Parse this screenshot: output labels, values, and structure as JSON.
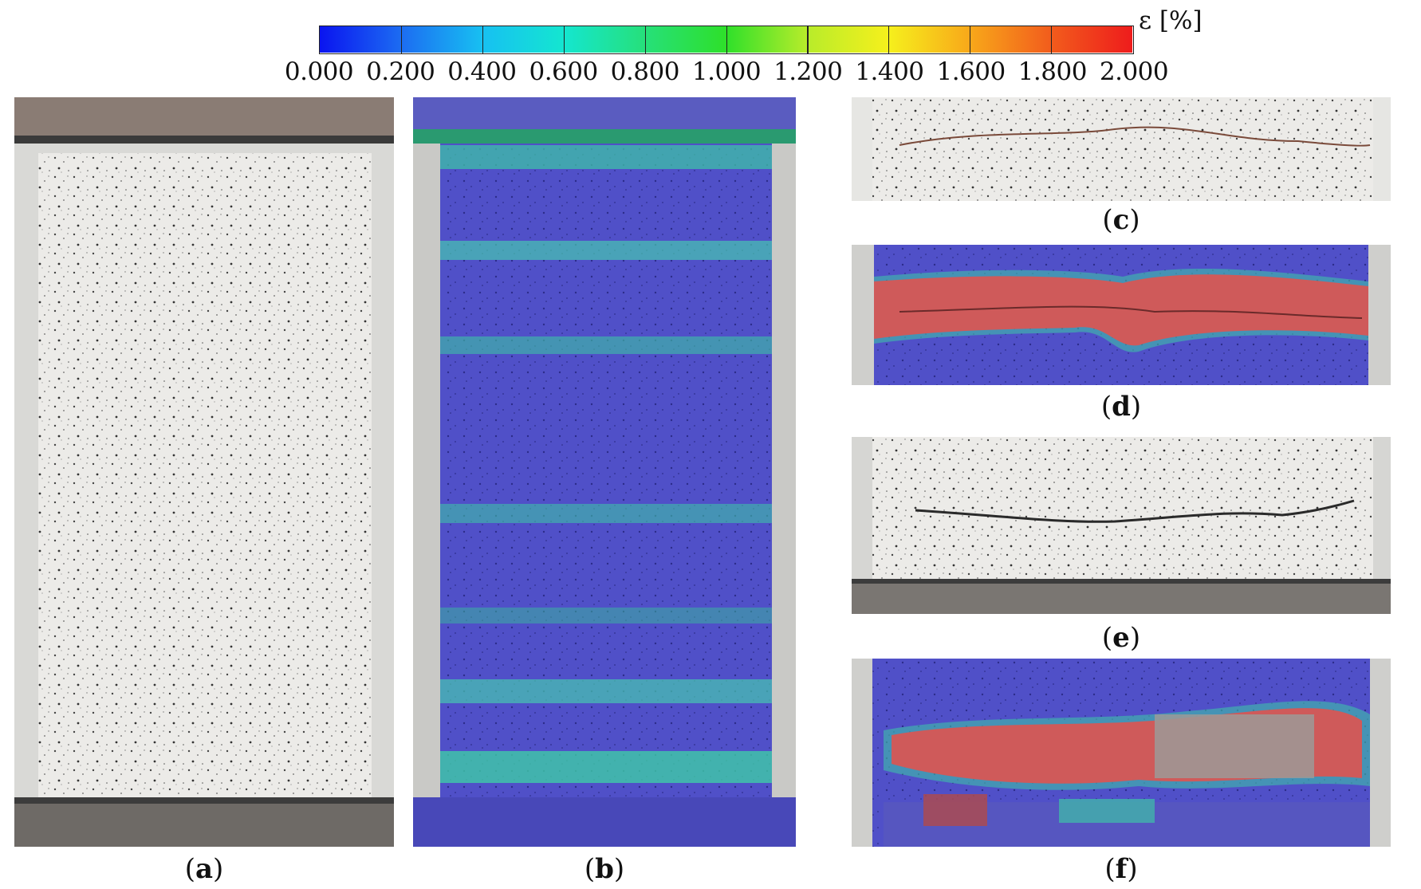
{
  "colorbar": {
    "unit_label": "ε [%]",
    "ticks": [
      "0.000",
      "0.200",
      "0.400",
      "0.600",
      "0.800",
      "1.000",
      "1.200",
      "1.400",
      "1.600",
      "1.800",
      "2.000"
    ],
    "colors": [
      "#0a14f0",
      "#1c6cf2",
      "#17c0f2",
      "#14e6d0",
      "#26e07a",
      "#2ee02a",
      "#b8ec2a",
      "#f6f01c",
      "#f8a81a",
      "#f25c1c",
      "#ee1c1c"
    ]
  },
  "panels": [
    {
      "id": "a",
      "caption": "a"
    },
    {
      "id": "b",
      "caption": "b"
    },
    {
      "id": "c",
      "caption": "c"
    },
    {
      "id": "d",
      "caption": "d"
    },
    {
      "id": "e",
      "caption": "e"
    },
    {
      "id": "f",
      "caption": "f"
    }
  ]
}
